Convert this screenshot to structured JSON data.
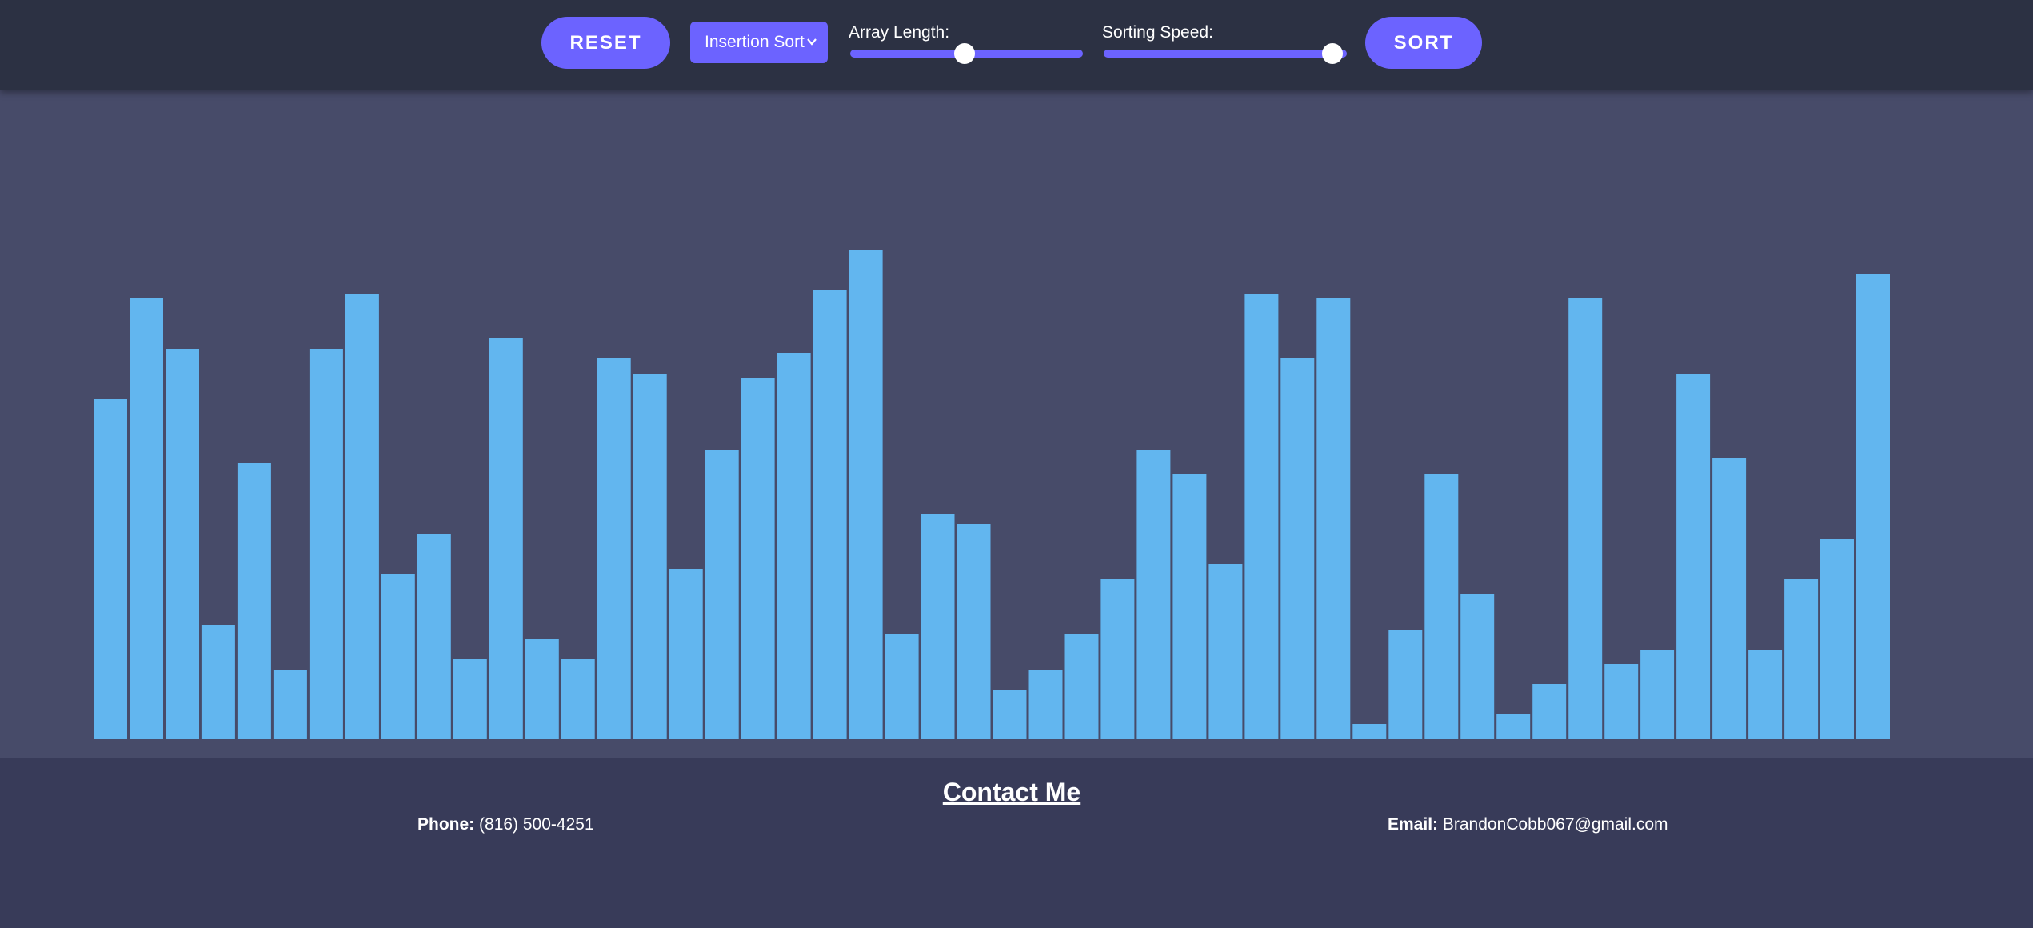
{
  "toolbar": {
    "reset_label": "RESET",
    "algorithm_selected": "Insertion Sort",
    "array_length_label": "Array Length:",
    "array_length_fraction": 0.49,
    "sorting_speed_label": "Sorting Speed:",
    "sorting_speed_fraction": 0.94,
    "sort_label": "SORT"
  },
  "colors": {
    "button": "#6c63ff",
    "bar": "#62b6ef",
    "stage_bg": "#474b69",
    "header_bg": "#2c3143",
    "footer_bg": "#383b59"
  },
  "chart_data": {
    "type": "bar",
    "values": [
      425,
      551,
      488,
      143,
      345,
      86,
      488,
      556,
      206,
      256,
      100,
      501,
      125,
      100,
      476,
      457,
      213,
      362,
      452,
      483,
      561,
      611,
      131,
      281,
      269,
      62,
      86,
      131,
      200,
      362,
      332,
      219,
      556,
      476,
      551,
      19,
      137,
      332,
      181,
      31,
      69,
      551,
      94,
      112,
      457,
      351,
      112,
      200,
      250,
      582
    ],
    "ylim": [
      0,
      700
    ]
  },
  "footer": {
    "title": "Contact Me",
    "phone_label": "Phone:",
    "phone_value": "(816) 500-4251",
    "email_label": "Email:",
    "email_value": "BrandonCobb067@gmail.com"
  }
}
